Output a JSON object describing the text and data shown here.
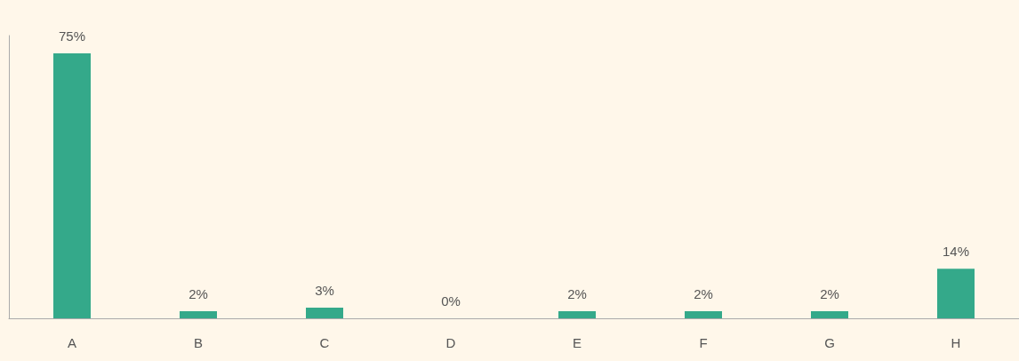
{
  "chart_data": {
    "type": "bar",
    "categories": [
      "A",
      "B",
      "C",
      "D",
      "E",
      "F",
      "G",
      "H"
    ],
    "values": [
      75,
      2,
      3,
      0,
      2,
      2,
      2,
      14
    ],
    "value_labels": [
      "75%",
      "2%",
      "3%",
      "0%",
      "2%",
      "2%",
      "2%",
      "14%"
    ],
    "color": "#34a98a",
    "tick_labels": "x"
  }
}
